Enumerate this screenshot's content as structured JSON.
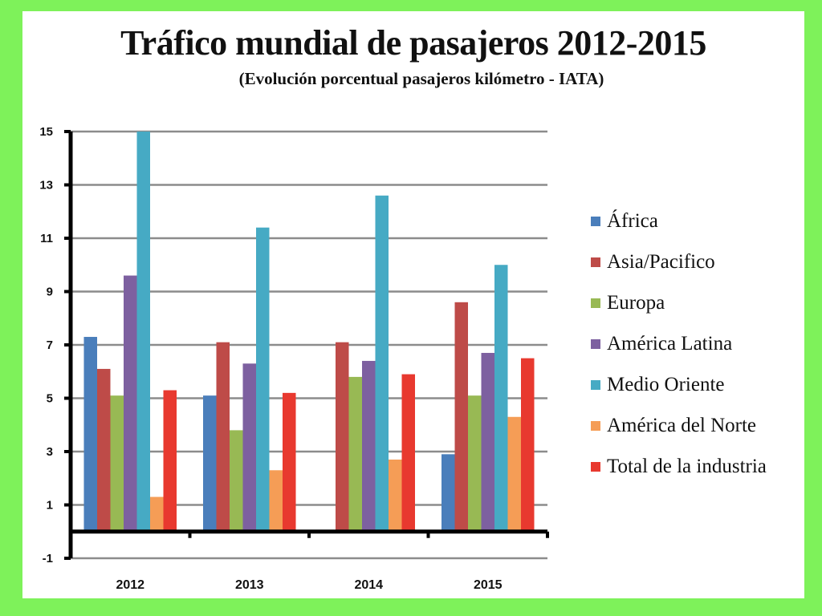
{
  "title": "Tráfico mundial de pasajeros 2012-2015",
  "subtitle": "(Evolución porcentual pasajeros kilómetro - IATA)",
  "chart_data": {
    "type": "bar",
    "title": "Tráfico mundial de pasajeros 2012-2015",
    "subtitle": "(Evolución porcentual pasajeros kilómetro - IATA)",
    "xlabel": "",
    "ylabel": "",
    "categories": [
      "2012",
      "2013",
      "2014",
      "2015"
    ],
    "ylim": [
      -1,
      15
    ],
    "yticks": [
      15,
      13,
      11,
      9,
      7,
      5,
      3,
      1,
      -1
    ],
    "grid": true,
    "legend_position": "right",
    "series": [
      {
        "name": "África",
        "color": "#4a7ebb",
        "values": [
          7.3,
          5.1,
          0.0,
          2.9
        ]
      },
      {
        "name": "Asia/Pacifico",
        "color": "#be4b48",
        "values": [
          6.1,
          7.1,
          7.1,
          8.6
        ]
      },
      {
        "name": "Europa",
        "color": "#98b954",
        "values": [
          5.1,
          3.8,
          5.8,
          5.1
        ]
      },
      {
        "name": "América Latina",
        "color": "#7d60a0",
        "values": [
          9.6,
          6.3,
          6.4,
          6.7
        ]
      },
      {
        "name": "Medio Oriente",
        "color": "#46aac4",
        "values": [
          15.0,
          11.4,
          12.6,
          10.0
        ]
      },
      {
        "name": "América del Norte",
        "color": "#f59d56",
        "values": [
          1.3,
          2.3,
          2.7,
          4.3
        ]
      },
      {
        "name": "Total de la industria",
        "color": "#e8392f",
        "values": [
          5.3,
          5.2,
          5.9,
          6.5
        ]
      }
    ]
  }
}
